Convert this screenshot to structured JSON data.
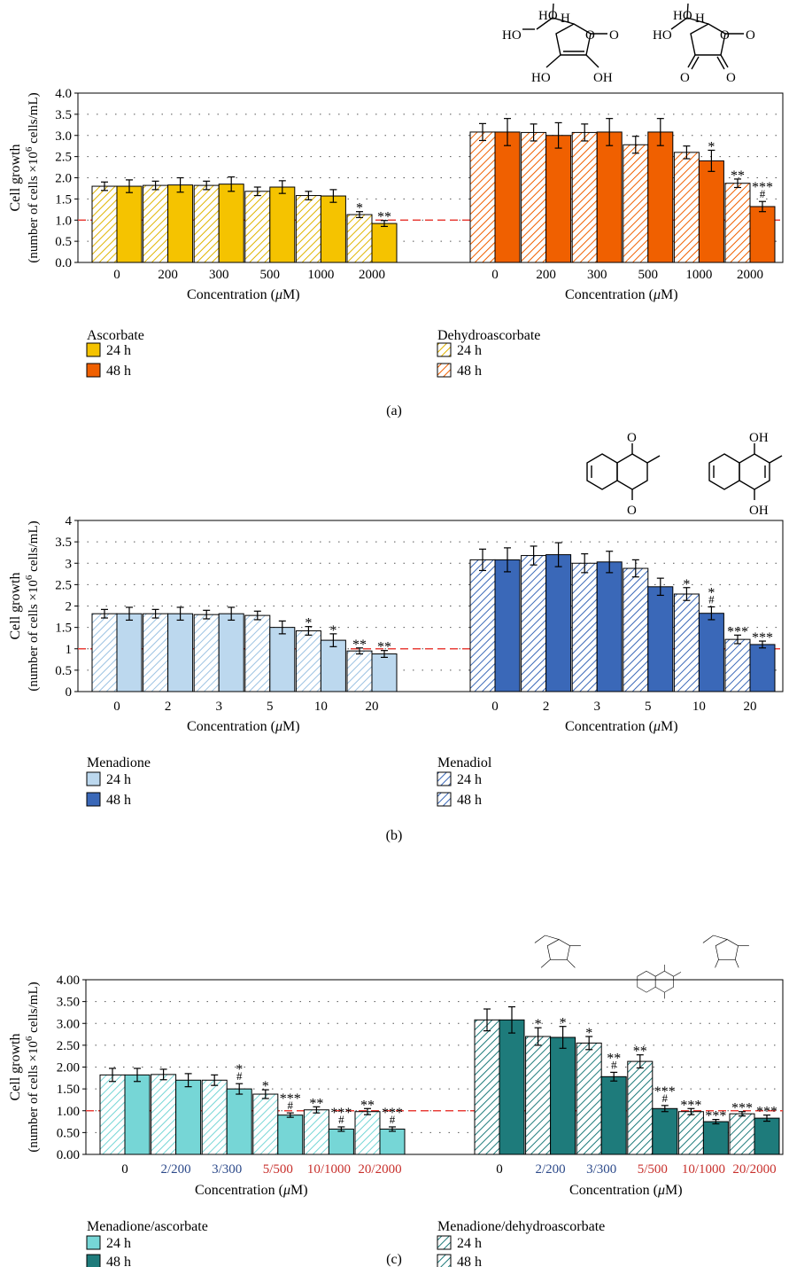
{
  "panels": [
    {
      "label": "(a)",
      "ylabel_line1": "Cell growth",
      "ylabel_line2_pre": "(number of cells ×10",
      "ylabel_sup": "6",
      "ylabel_line2_post": " cells/mL)",
      "xlabel_pre": "Concentration (",
      "xlabel_mu": "μ",
      "xlabel_post": "M)",
      "yticks": [
        "0.0",
        "0.5",
        "1.0",
        "1.5",
        "2.0",
        "2.5",
        "3.0",
        "3.5",
        "4.0"
      ],
      "legend": {
        "left_title": "Ascorbate",
        "left_items": [
          "24 h",
          "48 h"
        ],
        "right_title": "Dehydroascorbate",
        "right_items": [
          "24 h",
          "48 h"
        ]
      }
    },
    {
      "label": "(b)",
      "ylabel_line1": "Cell growth",
      "ylabel_line2_pre": "(number of cells ×10",
      "ylabel_sup": "6",
      "ylabel_line2_post": " cells/mL)",
      "xlabel_pre": "Concentration (",
      "xlabel_mu": "μ",
      "xlabel_post": "M)",
      "yticks": [
        "0",
        "0.5",
        "1",
        "1.5",
        "2",
        "2.5",
        "3",
        "3.5",
        "4"
      ],
      "legend": {
        "left_title": "Menadione",
        "left_items": [
          "24 h",
          "48 h"
        ],
        "right_title": "Menadiol",
        "right_items": [
          "24 h",
          "48 h"
        ]
      }
    },
    {
      "label": "(c)",
      "ylabel_line1": "Cell growth",
      "ylabel_line2_pre": "(number of cells ×10",
      "ylabel_sup": "6",
      "ylabel_line2_post": " cells/mL)",
      "xlabel_pre": "Concentration (",
      "xlabel_mu": "μ",
      "xlabel_post": "M)",
      "yticks": [
        "0.00",
        "0.50",
        "1.00",
        "1.50",
        "2.00",
        "2.50",
        "3.00",
        "3.50",
        "4.00"
      ],
      "legend": {
        "left_title": "Menadione/ascorbate",
        "left_items": [
          "24 h",
          "48 h"
        ],
        "right_title": "Menadione/dehydroascorbate",
        "right_items": [
          "24 h",
          "48 h"
        ]
      }
    }
  ],
  "structures": {
    "asc": {
      "ho_top": "HO",
      "h": "H",
      "ho_left": "HO",
      "o_ring": "O",
      "o_carbonyl": "O",
      "ho_bottom": "HO",
      "oh_bottom": "OH"
    },
    "dha": {
      "ho_top": "HO",
      "h": "H",
      "ho_left": "HO",
      "o_ring": "O",
      "o_carbonyl": "O",
      "o_left": "O",
      "o_right": "O"
    },
    "menadione": {
      "o_top": "O",
      "o_bottom": "O"
    },
    "menadiol": {
      "oh_top": "OH",
      "oh_bottom": "OH"
    }
  },
  "colors": {
    "ascorbate": "#f5c300",
    "ascorbate_hatch": "#e0b400",
    "dehydroascorbate": "#f06000",
    "menadione_24": "#bcd8ee",
    "menadione_48": "#3a68b8",
    "combo_asc_24": "#76d6d6",
    "combo_asc_48": "#1e7b7b",
    "reference_line": "#e8403a",
    "label_blue": "#2d4a8a",
    "label_red": "#c8302c"
  },
  "chart_data": [
    {
      "type": "bar",
      "title": "",
      "xlabel": "Concentration (μM)",
      "ylabel": "Cell growth (number of cells ×10^6 cells/mL)",
      "ylim": [
        0,
        4
      ],
      "grid": "horizontal dotted",
      "reference_line": 1.0,
      "groups": [
        {
          "name": "Ascorbate",
          "categories": [
            "0",
            "200",
            "300",
            "500",
            "1000",
            "2000"
          ],
          "series": [
            {
              "name": "24 h",
              "style": "hatched",
              "values": [
                1.8,
                1.82,
                1.82,
                1.68,
                1.58,
                1.13
              ],
              "errors": [
                0.1,
                0.1,
                0.1,
                0.1,
                0.1,
                0.07
              ],
              "annotations": [
                "",
                "",
                "",
                "",
                "",
                "*"
              ]
            },
            {
              "name": "48 h",
              "style": "solid",
              "values": [
                1.8,
                1.83,
                1.85,
                1.78,
                1.57,
                0.92
              ],
              "errors": [
                0.15,
                0.17,
                0.17,
                0.15,
                0.15,
                0.07
              ],
              "annotations": [
                "",
                "",
                "",
                "",
                "",
                "**"
              ]
            }
          ]
        },
        {
          "name": "Dehydroascorbate",
          "categories": [
            "0",
            "200",
            "300",
            "500",
            "1000",
            "2000"
          ],
          "series": [
            {
              "name": "24 h",
              "style": "hatched",
              "values": [
                3.08,
                3.07,
                3.07,
                2.78,
                2.6,
                1.87
              ],
              "errors": [
                0.2,
                0.2,
                0.2,
                0.2,
                0.15,
                0.1
              ],
              "annotations": [
                "",
                "",
                "",
                "",
                "",
                "**"
              ]
            },
            {
              "name": "48 h",
              "style": "solid",
              "values": [
                3.08,
                3.0,
                3.08,
                3.08,
                2.4,
                1.32
              ],
              "errors": [
                0.32,
                0.3,
                0.32,
                0.32,
                0.25,
                0.12
              ],
              "annotations": [
                "",
                "",
                "",
                "",
                "*",
                "***|#"
              ]
            }
          ]
        }
      ]
    },
    {
      "type": "bar",
      "title": "",
      "xlabel": "Concentration (μM)",
      "ylabel": "Cell growth (number of cells ×10^6 cells/mL)",
      "ylim": [
        0,
        4
      ],
      "grid": "horizontal dotted",
      "reference_line": 1.0,
      "groups": [
        {
          "name": "Menadione",
          "categories": [
            "0",
            "2",
            "3",
            "5",
            "10",
            "20"
          ],
          "series": [
            {
              "name": "24 h",
              "style": "hatched",
              "values": [
                1.82,
                1.82,
                1.8,
                1.78,
                1.42,
                0.95
              ],
              "errors": [
                0.1,
                0.1,
                0.1,
                0.1,
                0.1,
                0.07
              ],
              "annotations": [
                "",
                "",
                "",
                "",
                "*",
                "**"
              ]
            },
            {
              "name": "48 h",
              "style": "solid",
              "values": [
                1.82,
                1.82,
                1.82,
                1.5,
                1.2,
                0.88
              ],
              "errors": [
                0.15,
                0.15,
                0.15,
                0.15,
                0.15,
                0.08
              ],
              "annotations": [
                "",
                "",
                "",
                "",
                "*",
                "**"
              ]
            }
          ]
        },
        {
          "name": "Menadiol",
          "categories": [
            "0",
            "2",
            "3",
            "5",
            "10",
            "20"
          ],
          "series": [
            {
              "name": "24 h",
              "style": "hatched",
              "values": [
                3.08,
                3.18,
                3.0,
                2.88,
                2.28,
                1.22
              ],
              "errors": [
                0.25,
                0.22,
                0.22,
                0.2,
                0.15,
                0.1
              ],
              "annotations": [
                "",
                "",
                "",
                "",
                "*",
                "***"
              ]
            },
            {
              "name": "48 h",
              "style": "solid",
              "values": [
                3.08,
                3.2,
                3.03,
                2.45,
                1.83,
                1.1
              ],
              "errors": [
                0.28,
                0.28,
                0.25,
                0.2,
                0.15,
                0.08
              ],
              "annotations": [
                "",
                "",
                "",
                "",
                "*|#",
                "***"
              ]
            }
          ]
        }
      ]
    },
    {
      "type": "bar",
      "title": "",
      "xlabel": "Concentration (μM)",
      "ylabel": "Cell growth (number of cells ×10^6 cells/mL)",
      "ylim": [
        0,
        4
      ],
      "grid": "horizontal dotted",
      "reference_line": 1.0,
      "groups": [
        {
          "name": "Menadione/ascorbate",
          "categories": [
            "0",
            "2/200",
            "3/300",
            "5/500",
            "10/1000",
            "20/2000"
          ],
          "category_colors": [
            "#000000",
            "#2d4a8a",
            "#2d4a8a",
            "#c8302c",
            "#c8302c",
            "#c8302c"
          ],
          "series": [
            {
              "name": "24 h",
              "style": "hatched",
              "values": [
                1.82,
                1.83,
                1.7,
                1.38,
                1.02,
                0.98
              ],
              "errors": [
                0.15,
                0.12,
                0.12,
                0.1,
                0.07,
                0.07
              ],
              "annotations": [
                "",
                "",
                "",
                "*",
                "**",
                "**"
              ]
            },
            {
              "name": "48 h",
              "style": "solid",
              "values": [
                1.82,
                1.7,
                1.5,
                0.9,
                0.58,
                0.58
              ],
              "errors": [
                0.15,
                0.15,
                0.12,
                0.05,
                0.05,
                0.05
              ],
              "annotations": [
                "",
                "",
                "*|#",
                "***|#",
                "***|#",
                "***|#"
              ]
            }
          ]
        },
        {
          "name": "Menadione/dehydroascorbate",
          "categories": [
            "0",
            "2/200",
            "3/300",
            "5/500",
            "10/1000",
            "20/2000"
          ],
          "category_colors": [
            "#000000",
            "#2d4a8a",
            "#2d4a8a",
            "#c8302c",
            "#c8302c",
            "#c8302c"
          ],
          "series": [
            {
              "name": "24 h",
              "style": "hatched",
              "values": [
                3.08,
                2.7,
                2.55,
                2.13,
                0.98,
                0.93
              ],
              "errors": [
                0.25,
                0.2,
                0.15,
                0.15,
                0.07,
                0.05
              ],
              "annotations": [
                "",
                "*",
                "*",
                "**",
                "***",
                "***"
              ]
            },
            {
              "name": "48 h",
              "style": "solid",
              "values": [
                3.08,
                2.68,
                1.78,
                1.05,
                0.75,
                0.83
              ],
              "errors": [
                0.3,
                0.25,
                0.1,
                0.07,
                0.05,
                0.07
              ],
              "annotations": [
                "",
                "*",
                "**|#",
                "***|#",
                "***",
                "***"
              ]
            }
          ]
        }
      ]
    }
  ]
}
